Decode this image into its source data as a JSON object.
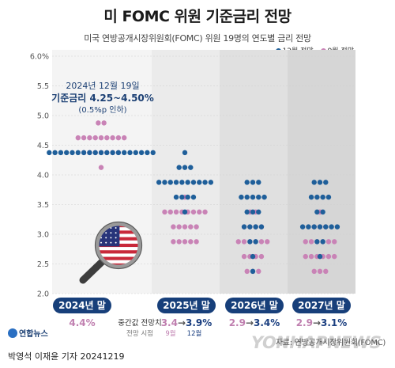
{
  "title": "미 FOMC 위원 기준금리 전망",
  "subtitle": "미국 연방공개시장위원회(FOMC) 위원 19명의 연도별 금리 전망",
  "legend": {
    "dec": "12월 전망",
    "sep": "9월 전망"
  },
  "colors": {
    "dec": "#1f5f9a",
    "sep": "#c983b6",
    "pill": "#173f7a",
    "value_sep": "#c080b0",
    "value_dec": "#1b3f80"
  },
  "annotation": {
    "line1": "2024년 12월 19일",
    "line2": "기준금리 4.25~4.50%",
    "line3": "(0.5%p 인하)"
  },
  "median_note": {
    "title": "중간값 전망치",
    "sub": "전망 시점",
    "sep": "9월",
    "dec": "12월"
  },
  "chart_data": {
    "type": "scatter",
    "title": "미 FOMC 위원 기준금리 전망",
    "xlabel": "",
    "ylabel": "",
    "ylim": [
      2.0,
      6.0
    ],
    "y_ticks": [
      "6.0%",
      "5.5",
      "5.0",
      "4.5",
      "4.0",
      "3.5",
      "3.0",
      "2.5",
      "2.0"
    ],
    "categories": [
      "2024년 말",
      "2025년 말",
      "2026년 말",
      "2027년 말"
    ],
    "series": [
      {
        "name": "12월 전망",
        "values": [
          [
            [
              4.375,
              19
            ]
          ],
          [
            [
              4.375,
              1
            ],
            [
              4.125,
              3
            ],
            [
              3.875,
              10
            ],
            [
              3.625,
              4
            ],
            [
              3.375,
              1
            ]
          ],
          [
            [
              3.875,
              3
            ],
            [
              3.625,
              5
            ],
            [
              3.375,
              3
            ],
            [
              3.125,
              4
            ],
            [
              2.875,
              2
            ],
            [
              2.625,
              1
            ],
            [
              2.375,
              1
            ]
          ],
          [
            [
              3.875,
              3
            ],
            [
              3.625,
              4
            ],
            [
              3.375,
              2
            ],
            [
              3.125,
              7
            ],
            [
              2.875,
              2
            ],
            [
              2.625,
              1
            ]
          ]
        ]
      },
      {
        "name": "9월 전망",
        "values": [
          [
            [
              4.875,
              2
            ],
            [
              4.625,
              9
            ],
            [
              4.375,
              7
            ],
            [
              4.125,
              1
            ]
          ],
          [
            [
              3.625,
              1
            ],
            [
              3.375,
              8
            ],
            [
              3.125,
              5
            ],
            [
              2.875,
              5
            ]
          ],
          [
            [
              3.375,
              2
            ],
            [
              3.125,
              4
            ],
            [
              2.875,
              6
            ],
            [
              2.625,
              4
            ],
            [
              2.375,
              3
            ]
          ],
          [
            [
              3.375,
              1
            ],
            [
              3.125,
              3
            ],
            [
              2.875,
              6
            ],
            [
              2.625,
              6
            ],
            [
              2.375,
              3
            ]
          ]
        ]
      }
    ],
    "medians": [
      {
        "year": "2024년 말",
        "dec": "4.4%",
        "sep": ""
      },
      {
        "year": "2025년 말",
        "sep": "3.4",
        "dec": "3.9%"
      },
      {
        "year": "2026년 말",
        "sep": "2.9",
        "dec": "3.4%"
      },
      {
        "year": "2027년 말",
        "sep": "2.9",
        "dec": "3.1%"
      }
    ],
    "arrow": "→"
  },
  "source": "자료: 연방공개시장위원회(FOMC)",
  "credit": "박영석 이재윤 기자  20241219",
  "agency": "연합뉴스",
  "watermark": "YONHAPNEWS"
}
